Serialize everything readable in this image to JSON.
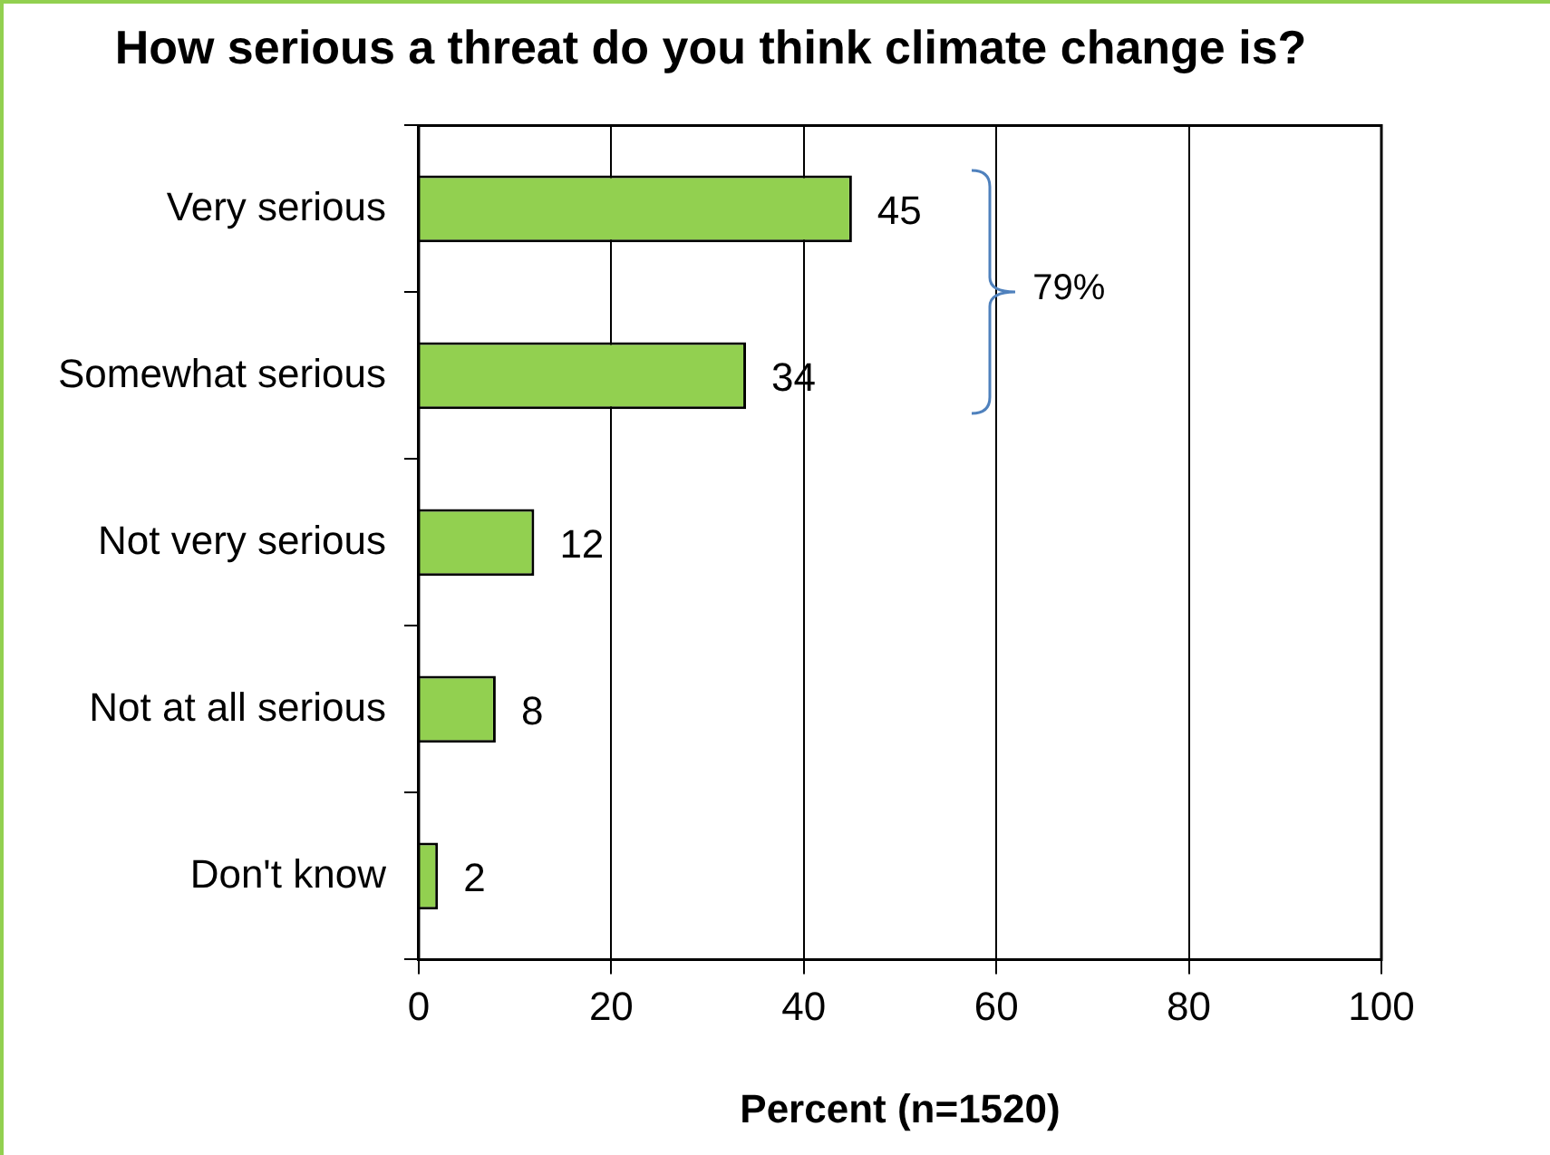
{
  "chart_data": {
    "type": "bar",
    "orientation": "horizontal",
    "title": "How serious a threat do you think climate change is?",
    "xlabel": "Percent (n=1520)",
    "categories": [
      "Very serious",
      "Somewhat serious",
      "Not very serious",
      "Not at all serious",
      "Don't know"
    ],
    "values": [
      45,
      34,
      12,
      8,
      2
    ],
    "color": "#92d050",
    "xlim": [
      0,
      100
    ],
    "xticks": [
      0,
      20,
      40,
      60,
      80,
      100
    ],
    "grid": "x",
    "data_labels": true,
    "legend": false,
    "annotations": [
      "79%"
    ]
  }
}
